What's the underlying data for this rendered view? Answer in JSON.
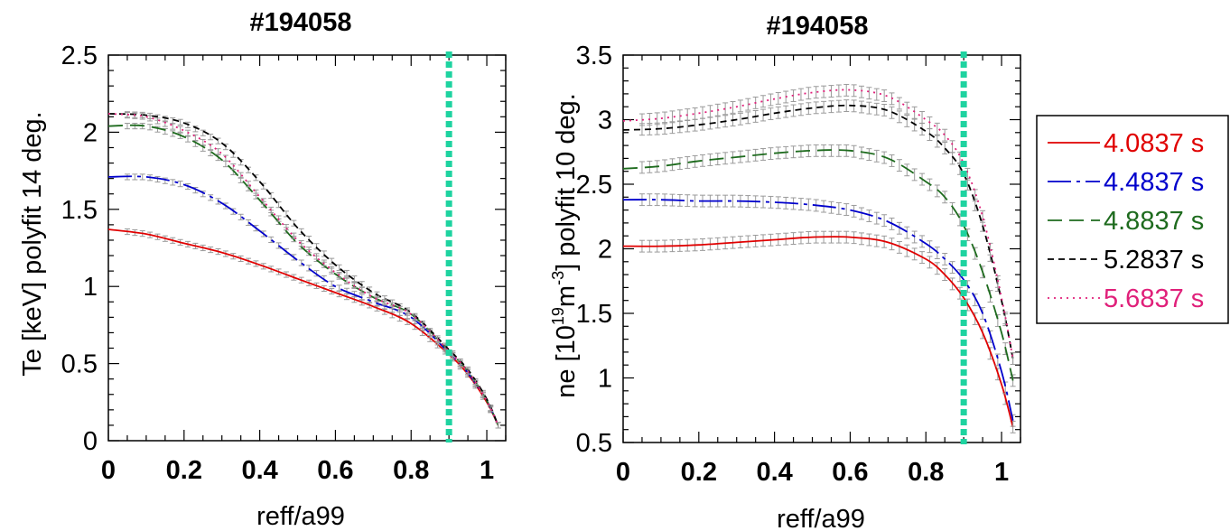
{
  "chart_data": [
    {
      "type": "line",
      "title": "#194058",
      "xlabel": "reff/a99",
      "ylabel": "Te [keV] polyfit 14 deg.",
      "xlim": [
        0,
        1.05
      ],
      "ylim": [
        0,
        2.5
      ],
      "x_ticks": [
        "0",
        "0.2",
        "0.4",
        "0.6",
        "0.8",
        "1"
      ],
      "y_ticks": [
        "0",
        "0.5",
        "1",
        "1.5",
        "2",
        "2.5"
      ],
      "vline": {
        "x": 0.9,
        "color": "#1ed3a0"
      },
      "x": [
        0,
        0.1,
        0.2,
        0.3,
        0.4,
        0.5,
        0.6,
        0.7,
        0.8,
        0.9,
        0.95,
        1.0,
        1.03
      ],
      "series": [
        {
          "name": "4.0837 s",
          "color": "#e00000",
          "dash": "solid",
          "values": [
            1.37,
            1.34,
            1.28,
            1.22,
            1.14,
            1.05,
            0.96,
            0.87,
            0.76,
            0.56,
            0.43,
            0.25,
            0.1
          ]
        },
        {
          "name": "4.4837 s",
          "color": "#0000cc",
          "dash": "longdash",
          "values": [
            1.71,
            1.71,
            1.66,
            1.54,
            1.36,
            1.17,
            1.0,
            0.9,
            0.8,
            0.57,
            0.44,
            0.26,
            0.1
          ]
        },
        {
          "name": "4.8837 s",
          "color": "#1e6b1e",
          "dash": "dash",
          "values": [
            2.04,
            2.04,
            1.97,
            1.82,
            1.56,
            1.28,
            1.08,
            0.93,
            0.82,
            0.58,
            0.45,
            0.26,
            0.1
          ]
        },
        {
          "name": "5.2837 s",
          "color": "#000000",
          "dash": "shortdash",
          "values": [
            2.12,
            2.11,
            2.06,
            1.93,
            1.68,
            1.38,
            1.14,
            0.96,
            0.83,
            0.59,
            0.46,
            0.27,
            0.1
          ]
        },
        {
          "name": "5.6837 s",
          "color": "#e0207a",
          "dash": "dot",
          "values": [
            2.12,
            2.1,
            2.01,
            1.86,
            1.58,
            1.3,
            1.09,
            0.93,
            0.82,
            0.58,
            0.45,
            0.26,
            0.1
          ]
        }
      ]
    },
    {
      "type": "line",
      "title": "#194058",
      "xlabel": "reff/a99",
      "ylabel": "ne [10",
      "ylabel_sup1": "19",
      "ylabel_mid": "m",
      "ylabel_sup2": "-3",
      "ylabel_end": "] polyfit 10 deg.",
      "xlim": [
        0,
        1.05
      ],
      "ylim": [
        0.5,
        3.5
      ],
      "x_ticks": [
        "0",
        "0.2",
        "0.4",
        "0.6",
        "0.8",
        "1"
      ],
      "y_ticks": [
        "0.5",
        "1",
        "1.5",
        "2",
        "2.5",
        "3",
        "3.5"
      ],
      "vline": {
        "x": 0.9,
        "color": "#1ed3a0"
      },
      "x": [
        0,
        0.1,
        0.2,
        0.3,
        0.4,
        0.5,
        0.6,
        0.7,
        0.8,
        0.85,
        0.9,
        0.95,
        1.0,
        1.03
      ],
      "series": [
        {
          "name": "4.0837 s",
          "color": "#e00000",
          "dash": "solid",
          "values": [
            2.02,
            2.02,
            2.03,
            2.05,
            2.07,
            2.09,
            2.09,
            2.05,
            1.92,
            1.8,
            1.62,
            1.35,
            0.95,
            0.62
          ]
        },
        {
          "name": "4.4837 s",
          "color": "#0000cc",
          "dash": "longdash",
          "values": [
            2.38,
            2.38,
            2.37,
            2.37,
            2.36,
            2.34,
            2.3,
            2.21,
            2.04,
            1.92,
            1.76,
            1.5,
            1.05,
            0.67
          ]
        },
        {
          "name": "4.8837 s",
          "color": "#1e6b1e",
          "dash": "dash",
          "values": [
            2.62,
            2.64,
            2.68,
            2.71,
            2.74,
            2.76,
            2.76,
            2.7,
            2.52,
            2.4,
            2.18,
            1.82,
            1.35,
            0.98
          ]
        },
        {
          "name": "5.2837 s",
          "color": "#000000",
          "dash": "shortdash",
          "values": [
            2.92,
            2.93,
            2.96,
            3.0,
            3.05,
            3.09,
            3.11,
            3.07,
            2.91,
            2.78,
            2.58,
            2.18,
            1.6,
            1.15
          ]
        },
        {
          "name": "5.6837 s",
          "color": "#e0207a",
          "dash": "dot",
          "values": [
            2.99,
            3.01,
            3.05,
            3.1,
            3.16,
            3.21,
            3.23,
            3.18,
            3.0,
            2.88,
            2.66,
            2.25,
            1.62,
            1.15
          ]
        }
      ]
    }
  ],
  "legend": {
    "placement": "right",
    "entries": [
      "4.0837 s",
      "4.4837 s",
      "4.8837 s",
      "5.2837 s",
      "5.6837 s"
    ]
  }
}
